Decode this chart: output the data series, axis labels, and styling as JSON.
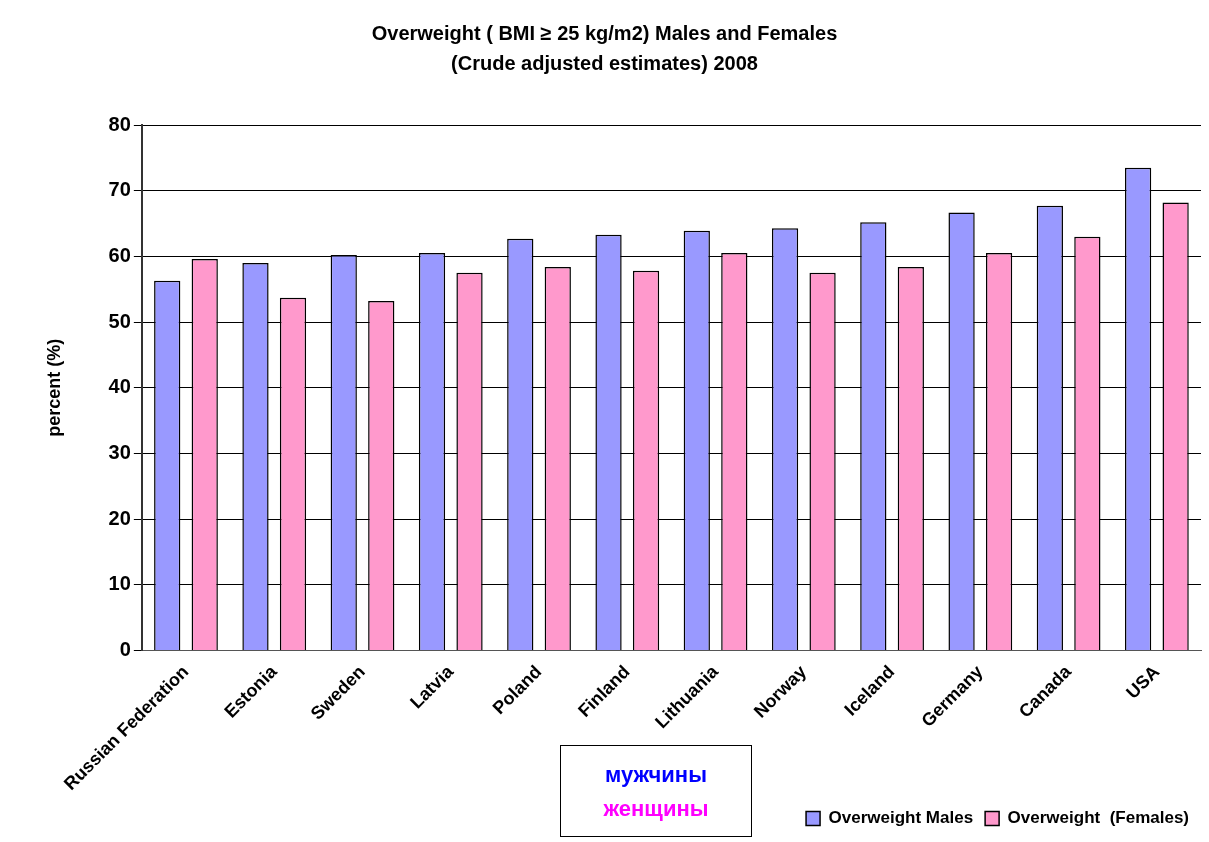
{
  "chart_data": {
    "type": "bar",
    "title": "Overweight ( BMI ≥ 25 kg/m2) Males and  Females",
    "subtitle": "(Crude adjusted estimates) 2008",
    "ylabel": "percent (%)",
    "categories": [
      "Russian Federation",
      "Estonia",
      "Sweden",
      "Latvia",
      "Poland",
      "Finland",
      "Lithuania",
      "Norway",
      "Iceland",
      "Germany",
      "Canada",
      "USA"
    ],
    "series": [
      {
        "name": "Overweight Males",
        "color": "#9999ff",
        "values": [
          56.3,
          59.0,
          60.2,
          60.5,
          62.7,
          63.3,
          63.9,
          64.3,
          65.2,
          66.7,
          67.7,
          73.5
        ]
      },
      {
        "name": "Overweight  (Females)",
        "color": "#ff99cc",
        "values": [
          59.6,
          53.7,
          53.2,
          57.5,
          58.4,
          57.8,
          60.5,
          57.5,
          58.4,
          60.5,
          63.0,
          68.2
        ]
      }
    ],
    "ylim": [
      0,
      80
    ],
    "yticks": [
      0,
      10,
      20,
      30,
      40,
      50,
      60,
      70,
      80
    ],
    "grid": "y",
    "legend": "bottom right",
    "annotations": [
      "мужчины",
      "женщины"
    ]
  }
}
